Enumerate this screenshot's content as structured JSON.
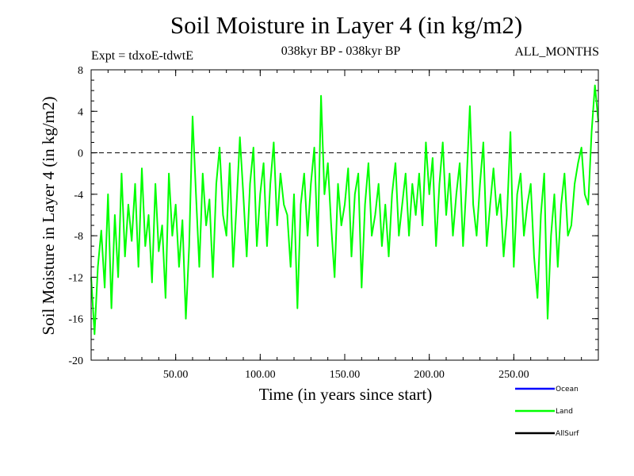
{
  "title": "Soil Moisture in Layer 4 (in kg/m2)",
  "expt_label": "Expt = tdxoE-tdwtE",
  "period_label": "038kyr BP - 038kyr BP",
  "months_label": "ALL_MONTHS",
  "chart_data": {
    "type": "line",
    "xlabel": "Time (in years since start)",
    "ylabel": "Soil Moisture in Layer 4 (in kg/m2)",
    "xlim": [
      0,
      300
    ],
    "ylim": [
      -20,
      8
    ],
    "x_ticks": [
      50,
      100,
      150,
      200,
      250
    ],
    "x_tick_labels": [
      "50.00",
      "100.00",
      "150.00",
      "200.00",
      "250.00"
    ],
    "y_ticks": [
      -20,
      -16,
      -12,
      -8,
      -4,
      0,
      4,
      8
    ],
    "y_tick_labels": [
      "-20",
      "-16",
      "-12",
      "-8",
      "-4",
      "0",
      "4",
      "8"
    ],
    "zero_line": {
      "y": 0,
      "style": "dashed"
    },
    "legend_position": "bottom-right",
    "series": [
      {
        "name": "Ocean",
        "color": "#0000ff",
        "x": [],
        "values": []
      },
      {
        "name": "Land",
        "color": "#00ff00",
        "x": [
          0,
          2,
          4,
          6,
          8,
          10,
          12,
          14,
          16,
          18,
          20,
          22,
          24,
          26,
          28,
          30,
          32,
          34,
          36,
          38,
          40,
          42,
          44,
          46,
          48,
          50,
          52,
          54,
          56,
          58,
          60,
          62,
          64,
          66,
          68,
          70,
          72,
          74,
          76,
          78,
          80,
          82,
          84,
          86,
          88,
          90,
          92,
          94,
          96,
          98,
          100,
          102,
          104,
          106,
          108,
          110,
          112,
          114,
          116,
          118,
          120,
          122,
          124,
          126,
          128,
          130,
          132,
          134,
          136,
          138,
          140,
          142,
          144,
          146,
          148,
          150,
          152,
          154,
          156,
          158,
          160,
          162,
          164,
          166,
          168,
          170,
          172,
          174,
          176,
          178,
          180,
          182,
          184,
          186,
          188,
          190,
          192,
          194,
          196,
          198,
          200,
          202,
          204,
          206,
          208,
          210,
          212,
          214,
          216,
          218,
          220,
          222,
          224,
          226,
          228,
          230,
          232,
          234,
          236,
          238,
          240,
          242,
          244,
          246,
          248,
          250,
          252,
          254,
          256,
          258,
          260,
          262,
          264,
          266,
          268,
          270,
          272,
          274,
          276,
          278,
          280,
          282,
          284,
          286,
          288,
          290,
          292,
          294,
          296,
          298,
          300
        ],
        "values": [
          -12,
          -17.5,
          -11,
          -7.5,
          -13,
          -4,
          -15,
          -6,
          -12,
          -2,
          -10,
          -5,
          -8.5,
          -3,
          -11,
          -1.5,
          -9,
          -6,
          -12.5,
          -3,
          -9.5,
          -7,
          -14,
          -2,
          -8,
          -5,
          -11,
          -6.5,
          -16,
          -9,
          3.5,
          -4,
          -11,
          -2,
          -7,
          -4.5,
          -12,
          -3,
          0.5,
          -6,
          -8,
          -1,
          -11,
          -5,
          1.5,
          -4,
          -10,
          -3,
          0.5,
          -9,
          -4,
          -1,
          -9,
          -3,
          1,
          -7,
          -2,
          -5,
          -6,
          -11,
          -4,
          -15,
          -5,
          -2,
          -8,
          -3,
          0.5,
          -9,
          5.5,
          -4,
          -1,
          -7,
          -12,
          -3,
          -7,
          -5,
          -1.5,
          -10,
          -4,
          -2,
          -13,
          -5,
          -1,
          -8,
          -6,
          -3,
          -9,
          -5,
          -10,
          -4,
          -1,
          -8,
          -5,
          -2,
          -8,
          -3,
          -6,
          -2,
          -7,
          1,
          -4,
          -0.5,
          -9,
          -3,
          1,
          -6,
          -2,
          -8,
          -4,
          -1,
          -9,
          -3,
          4.5,
          -5,
          -8,
          -3,
          1,
          -9,
          -5,
          -1.5,
          -6,
          -4,
          -10,
          -6,
          2,
          -11,
          -4,
          -2,
          -8,
          -5,
          -3,
          -10,
          -14,
          -6,
          -2,
          -16,
          -8,
          -4,
          -11,
          -5,
          -2,
          -8,
          -7,
          -3,
          -1,
          0.5,
          -4,
          -5,
          2,
          6.5,
          3
        ]
      },
      {
        "name": "AllSurf",
        "color": "#000000",
        "x": [],
        "values": []
      }
    ]
  }
}
